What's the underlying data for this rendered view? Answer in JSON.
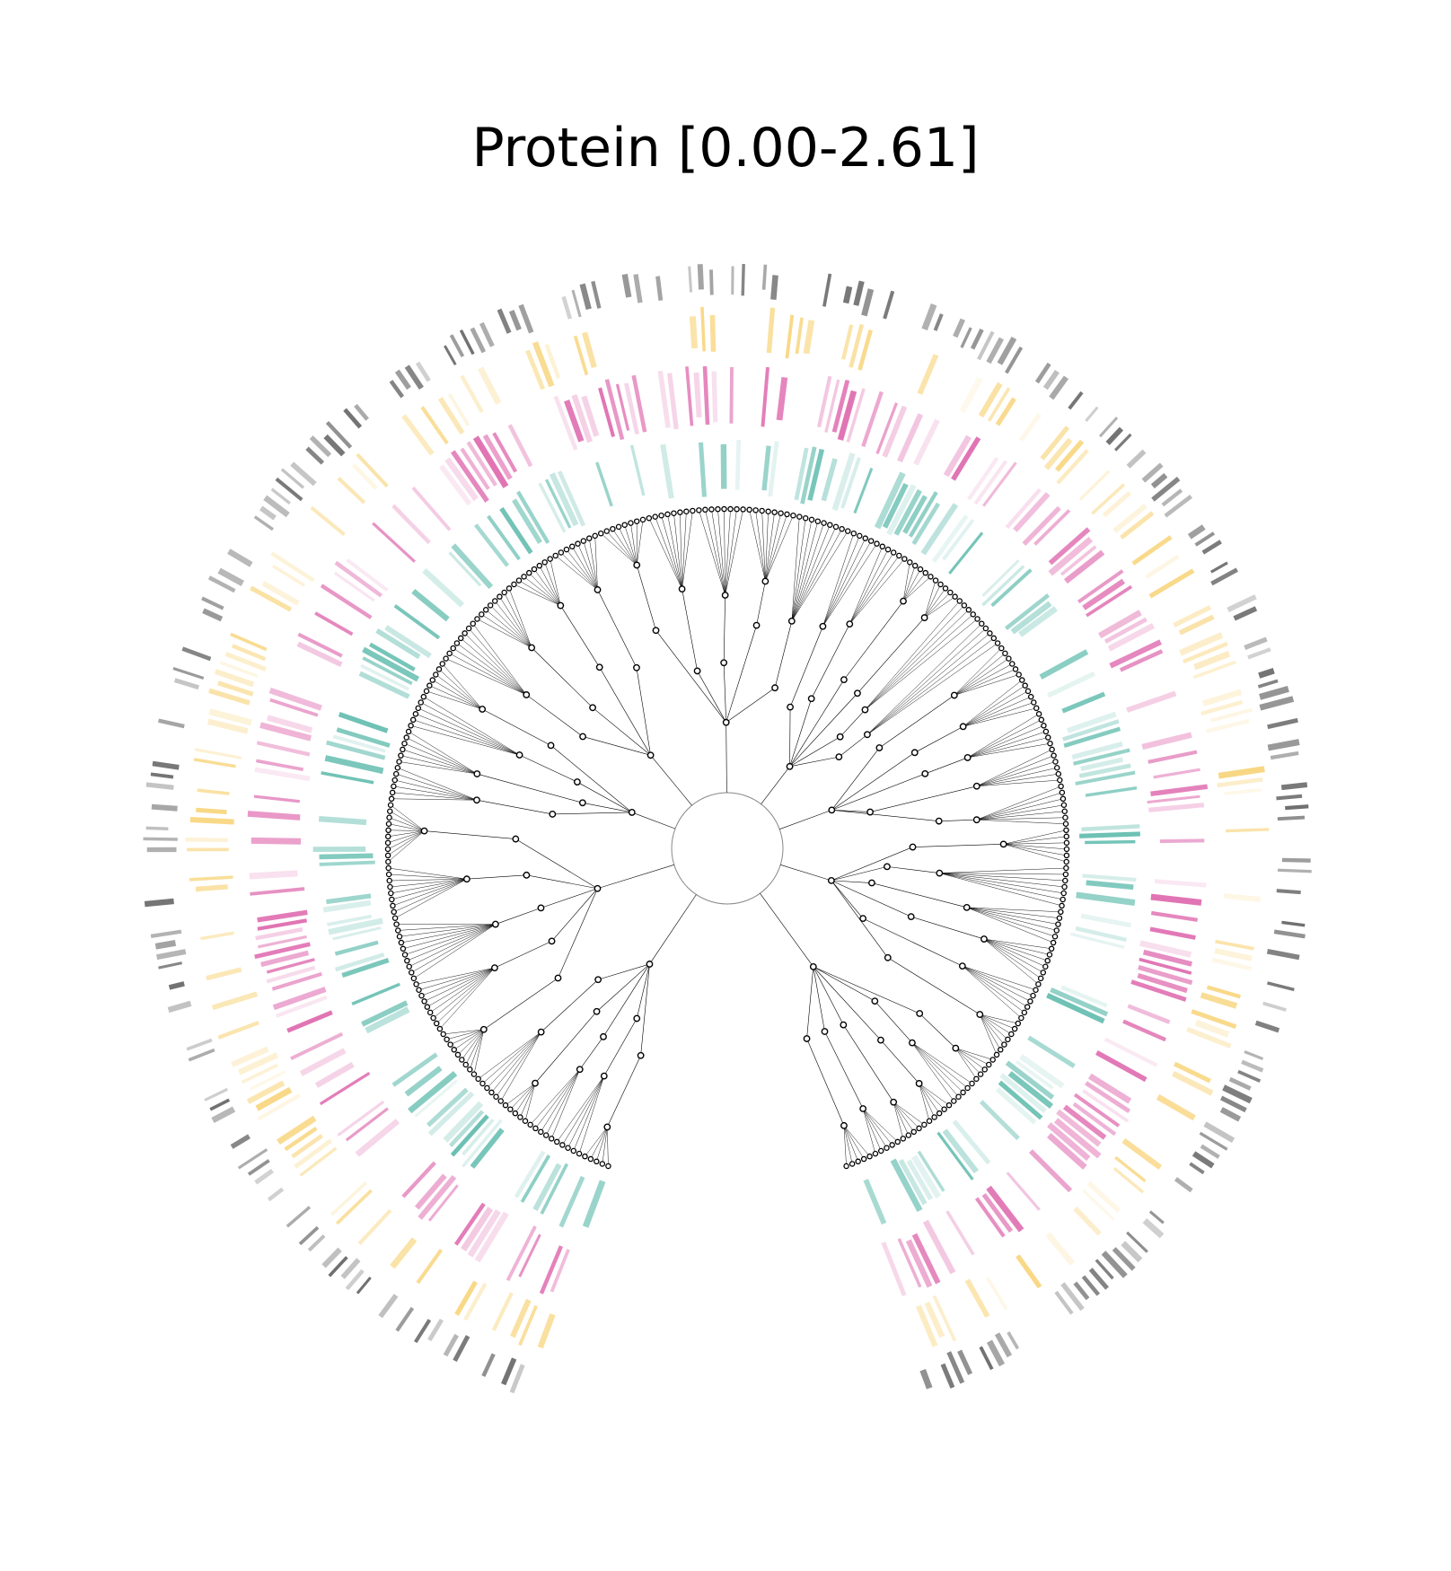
{
  "title": "Protein [0.00-2.61]",
  "colors": {
    "tree_line": "#000000",
    "node_fill": "#ffffff",
    "node_stroke": "#000000",
    "ring_teal": "#1b9e8a",
    "ring_magenta": "#d0278a",
    "ring_yellow": "#f5c242",
    "ring_gray": "#555555"
  },
  "chart_data": {
    "type": "circular-tree-heatmap",
    "title": "Protein [0.00-2.61]",
    "value_range": [
      0.0,
      2.61
    ],
    "rings": [
      {
        "color": "teal"
      },
      {
        "color": "magenta"
      },
      {
        "color": "yellow"
      },
      {
        "color": "gray"
      }
    ],
    "gap_direction": "bottom",
    "clades": 9
  }
}
